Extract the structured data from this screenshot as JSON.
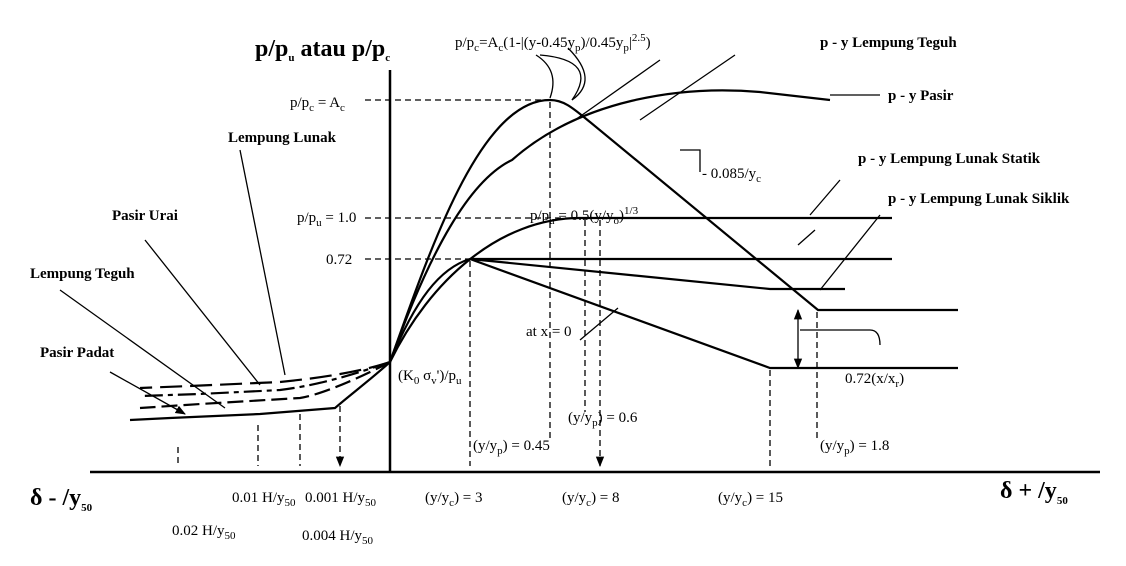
{
  "labels": [
    {
      "parts": [
        "p/p",
        "u",
        " atau p/p",
        "c"
      ]
    },
    {
      "parts": [
        "p/p",
        "c",
        "=A",
        "c",
        "(1-|(y-0.45y",
        "p",
        ")/0.45y",
        "p",
        "|",
        "2.5",
        ")"
      ]
    },
    {
      "parts": [
        "p - y  Lempung Teguh"
      ]
    },
    {
      "parts": [
        "p - y  Pasir"
      ]
    },
    {
      "parts": [
        "p/p",
        "c",
        " = A",
        "c"
      ]
    },
    {
      "parts": [
        "Lempung Lunak"
      ]
    },
    {
      "parts": [
        "p - y  Lempung Lunak Statik"
      ]
    },
    {
      "parts": [
        "- 0.085/y",
        "c"
      ]
    },
    {
      "parts": [
        "p - y  Lempung Lunak Siklik"
      ]
    },
    {
      "parts": [
        "Pasir Urai"
      ]
    },
    {
      "parts": [
        "p/p",
        "u",
        " = 1.0"
      ]
    },
    {
      "parts": [
        "p/p",
        "u",
        " = 0.5(y/y",
        "o",
        ")",
        "1/3"
      ]
    },
    {
      "parts": [
        "Lempung Teguh"
      ]
    },
    {
      "parts": [
        "0.72"
      ]
    },
    {
      "parts": [
        "at x = 0"
      ]
    },
    {
      "parts": [
        "0.72(x/x",
        "r",
        ")"
      ]
    },
    {
      "parts": [
        "Pasir Padat"
      ]
    },
    {
      "parts": [
        "(K",
        "0",
        " σ",
        "v",
        "')/p",
        "u"
      ]
    },
    {
      "parts": [
        "(y/y",
        "p",
        ") = 0.6"
      ]
    },
    {
      "parts": [
        "(y/y",
        "p",
        ") = 0.45"
      ]
    },
    {
      "parts": [
        "(y/y",
        "p",
        ") = 1.8"
      ]
    },
    {
      "parts": [
        "0.01 H/y",
        "50"
      ]
    },
    {
      "parts": [
        "0.001 H/y",
        "50"
      ]
    },
    {
      "parts": [
        "(y/y",
        "c",
        ") = 3"
      ]
    },
    {
      "parts": [
        "(y/y",
        "c",
        ") = 8"
      ]
    },
    {
      "parts": [
        "(y/y",
        "c",
        ") = 15"
      ]
    },
    {
      "parts": [
        "δ - /y",
        "50"
      ]
    },
    {
      "parts": [
        "δ + /y",
        "50"
      ]
    },
    {
      "parts": [
        "0.02 H/y",
        "50"
      ]
    },
    {
      "parts": [
        "0.004 H/y",
        "50"
      ]
    }
  ]
}
